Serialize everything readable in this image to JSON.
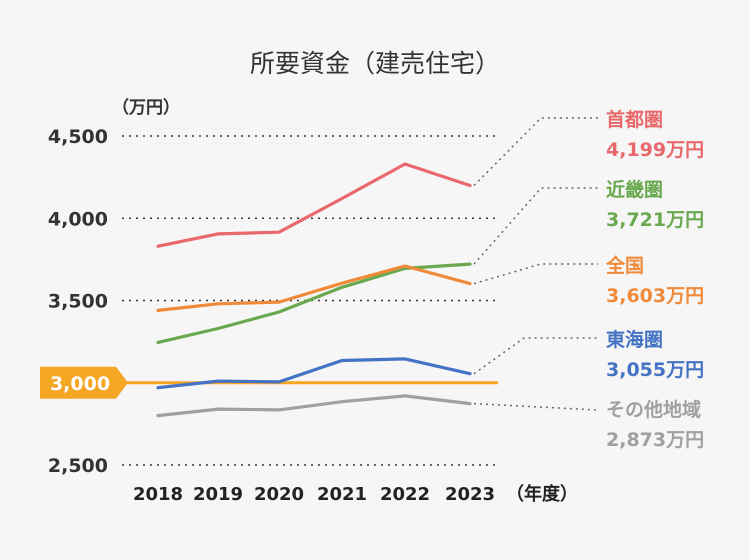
{
  "chart_data": {
    "type": "line",
    "title": "所要資金（建売住宅）",
    "ylabel": "（万円）",
    "xlabel": "（年度）",
    "categories": [
      "2018",
      "2019",
      "2020",
      "2021",
      "2022",
      "2023"
    ],
    "ylim": [
      2500,
      4500
    ],
    "yticks": [
      "4,500",
      "4,000",
      "3,500",
      "2,500"
    ],
    "ytick_values": [
      4500,
      4000,
      3500,
      2500
    ],
    "reference_line": {
      "value": 3000,
      "label": "3,000",
      "color": "#f5a623"
    },
    "series": [
      {
        "name": "首都圏",
        "values": [
          3830,
          3905,
          3915,
          4120,
          4330,
          4199
        ],
        "end_label": "4,199万円",
        "color": "#e8686b"
      },
      {
        "name": "近畿圏",
        "values": [
          3245,
          3330,
          3430,
          3580,
          3695,
          3721
        ],
        "end_label": "3,721万円",
        "color": "#6aa84f"
      },
      {
        "name": "全国",
        "values": [
          3440,
          3480,
          3490,
          3605,
          3710,
          3603
        ],
        "end_label": "3,603万円",
        "color": "#ef8a3a"
      },
      {
        "name": "東海圏",
        "values": [
          2970,
          3010,
          3005,
          3135,
          3145,
          3055
        ],
        "end_label": "3,055万円",
        "color": "#4472c4"
      },
      {
        "name": "その他地域",
        "values": [
          2800,
          2840,
          2835,
          2885,
          2920,
          2873
        ],
        "end_label": "2,873万円",
        "color": "#a0a0a0"
      }
    ]
  }
}
